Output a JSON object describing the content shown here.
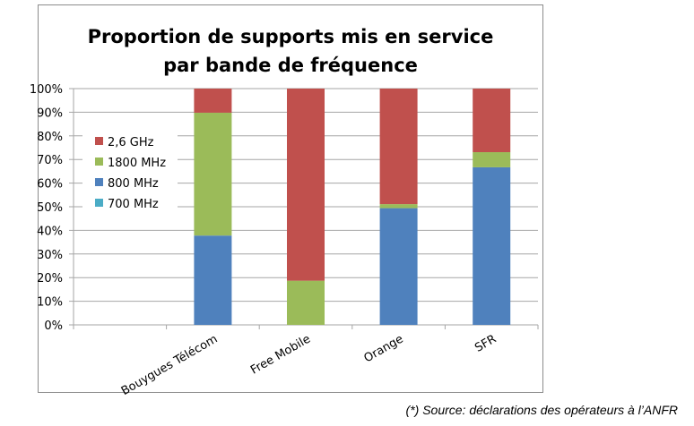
{
  "chart_data": {
    "type": "bar",
    "stacked": true,
    "title": [
      "Proportion de supports mis en service",
      "par bande de fréquence"
    ],
    "categories": [
      "Bouygues Télécom",
      "Free Mobile",
      "Orange",
      "SFR"
    ],
    "series": [
      {
        "name": "800 MHz",
        "color": "#4f81bd",
        "values": [
          37.8,
          0,
          49.4,
          66.7
        ]
      },
      {
        "name": "1800 MHz",
        "color": "#9bbb59",
        "values": [
          52.0,
          18.7,
          1.7,
          6.4
        ]
      },
      {
        "name": "2,6 GHz",
        "color": "#c0504d",
        "values": [
          10.2,
          81.3,
          48.9,
          26.9
        ]
      },
      {
        "name": "700 MHz",
        "color": "#4bacc6",
        "values": [
          0,
          0,
          0,
          0
        ]
      }
    ],
    "legend_order": [
      "2,6 GHz",
      "1800 MHz",
      "800 MHz",
      "700 MHz"
    ],
    "ylim": [
      0,
      100
    ],
    "yticks": [
      "0%",
      "10%",
      "20%",
      "30%",
      "40%",
      "50%",
      "60%",
      "70%",
      "80%",
      "90%",
      "100%"
    ],
    "xlabel": "",
    "ylabel": "",
    "grid": true,
    "legend_position": "left-inside"
  },
  "footnote": "(*) Source: déclarations des opérateurs à l’ANFR"
}
